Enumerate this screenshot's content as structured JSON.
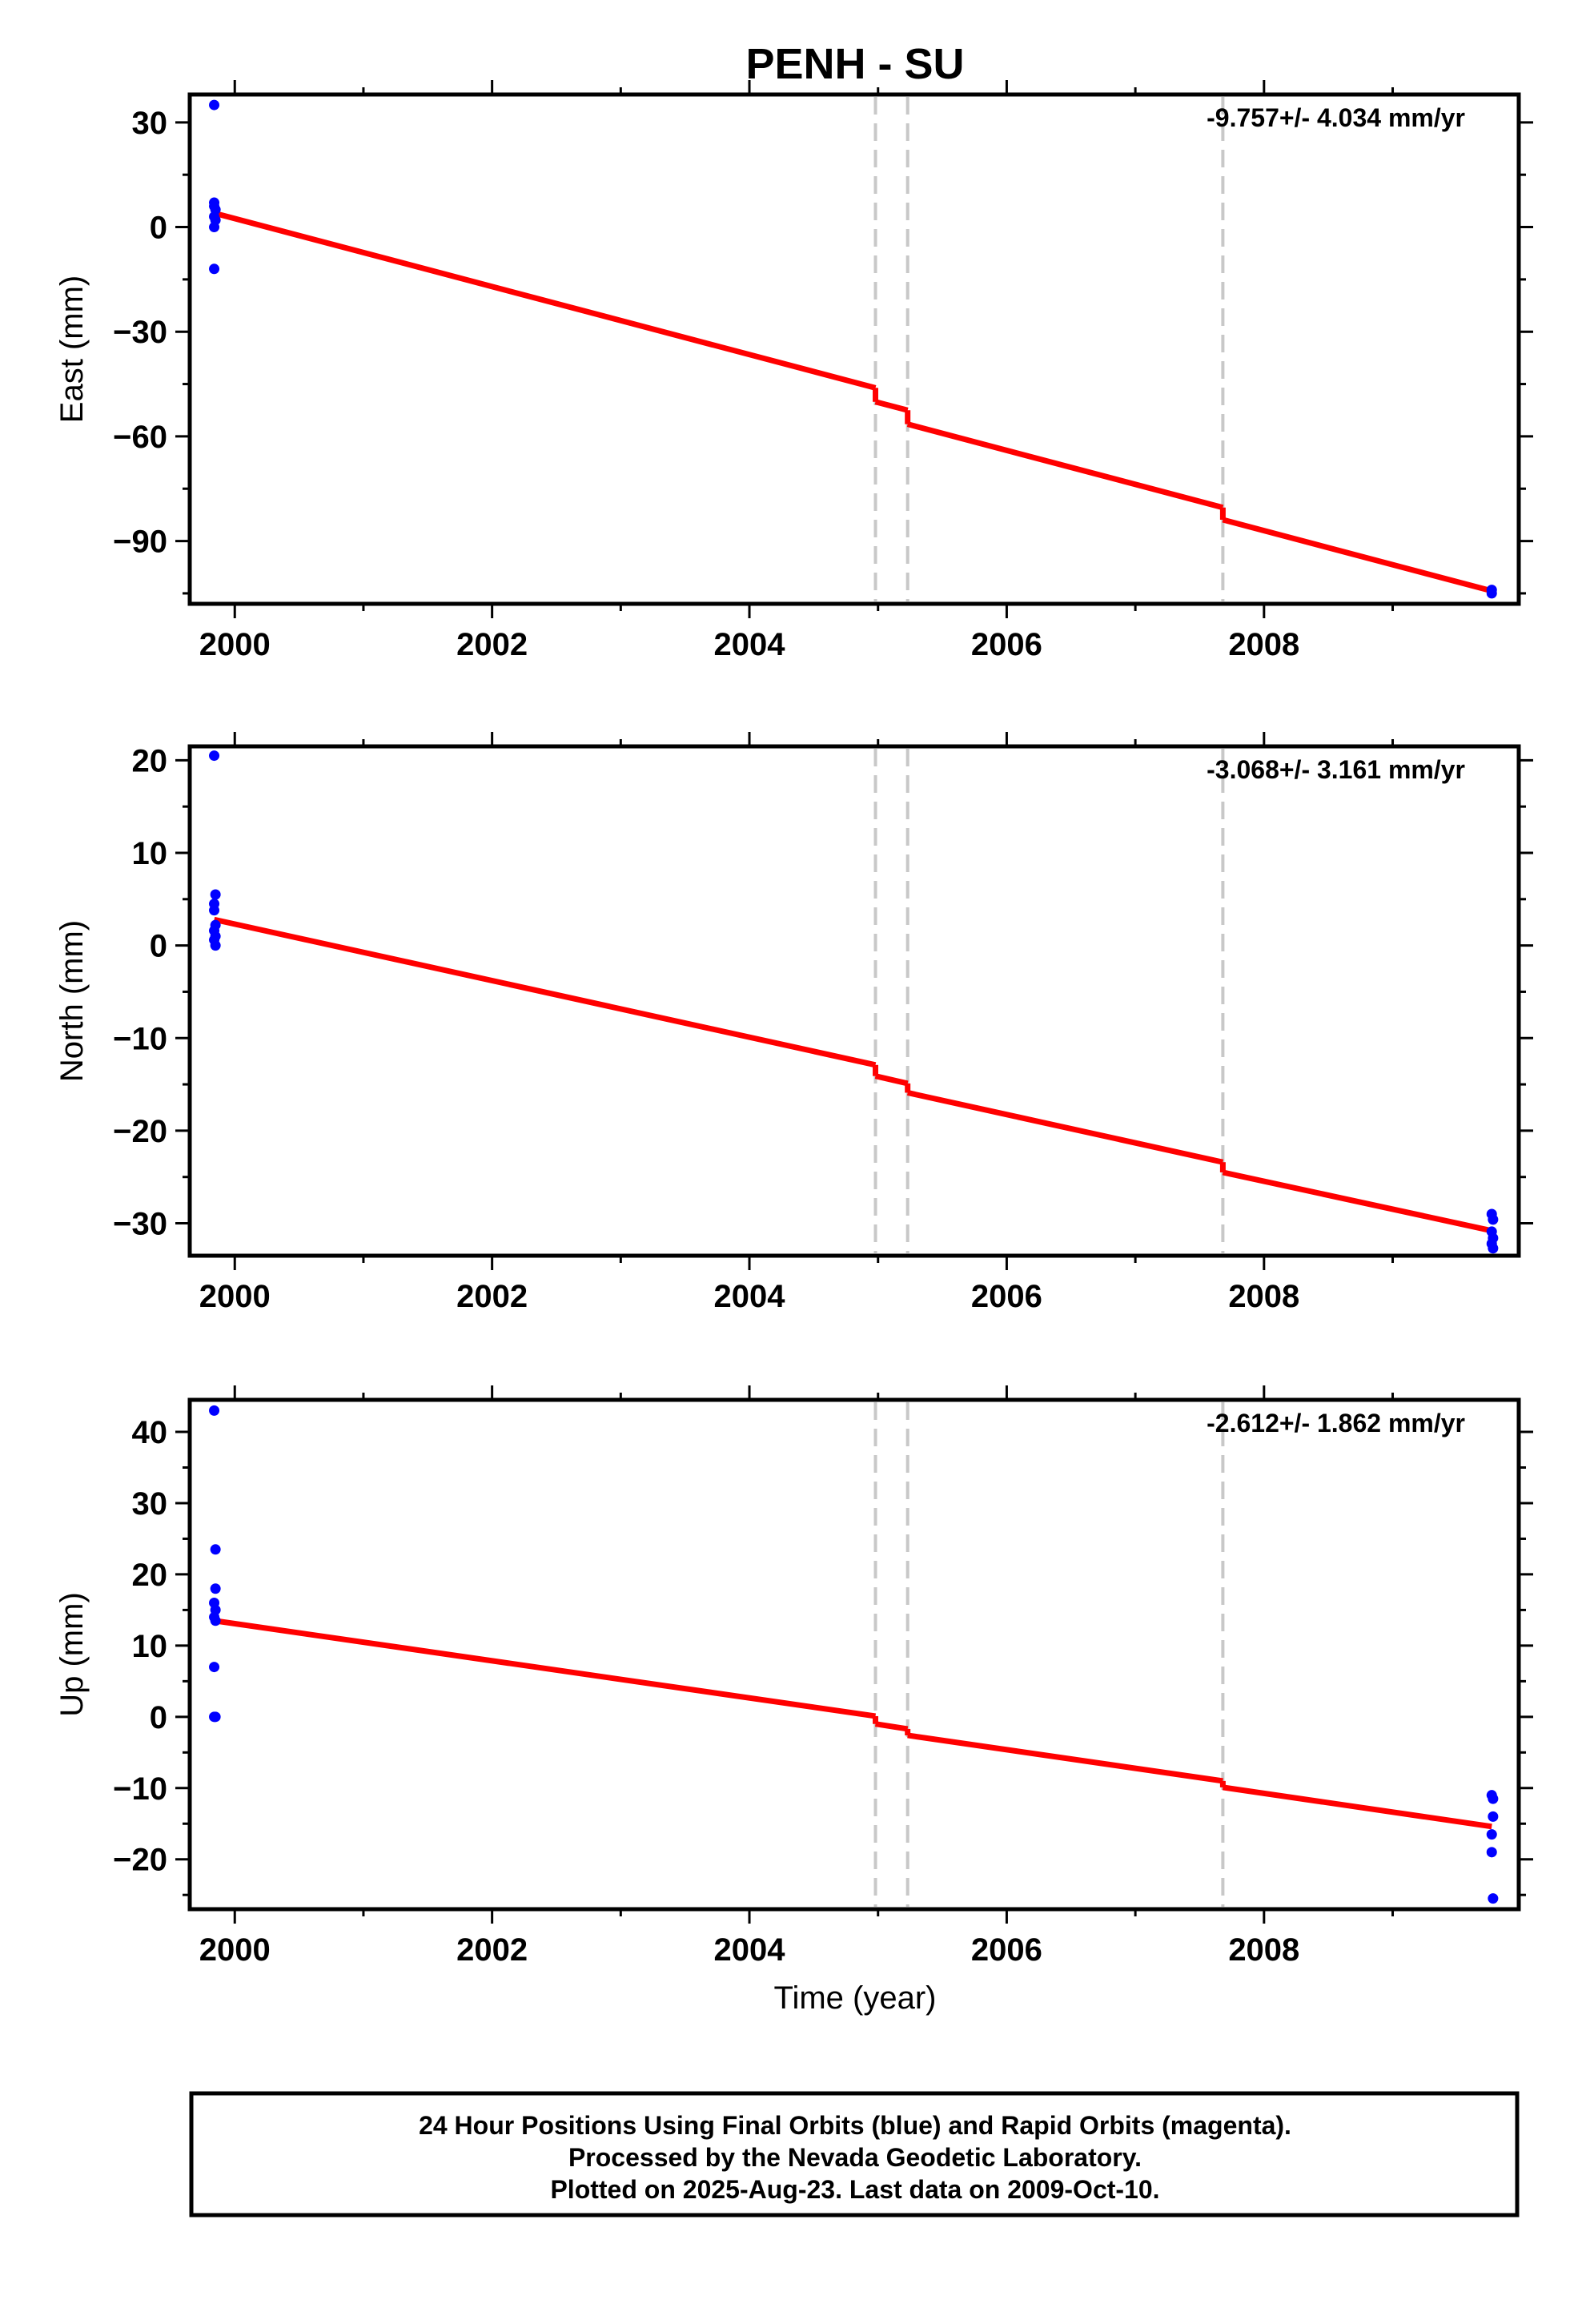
{
  "chart_data": {
    "title": "PENH - SU",
    "type": "scatter",
    "x_label": "Time (year)",
    "x_range": [
      1999.65,
      2009.98
    ],
    "x_ticks": [
      2000,
      2002,
      2004,
      2006,
      2008
    ],
    "x_minor_ticks": [
      2001,
      2003,
      2005,
      2007,
      2009
    ],
    "x_tick_labels": [
      "2000",
      "2002",
      "2004",
      "2006",
      "2008"
    ],
    "event_lines_x": [
      2004.98,
      2005.23,
      2007.68
    ],
    "event_line_color": "#c8c8c8",
    "point_color": "#0000ff",
    "fit_color": "#ff0000",
    "panels": [
      {
        "name": "east",
        "ylabel": "East (mm)",
        "ylim": [
          -108,
          38
        ],
        "y_ticks": [
          30,
          0,
          -30,
          -60,
          -90
        ],
        "y_tick_labels": [
          "30",
          "0",
          "−30",
          "−60",
          "−90"
        ],
        "y_minor_ticks": [
          15,
          -15,
          -45,
          -75,
          -105
        ],
        "rate_label": "-9.757+/- 4.034 mm/yr",
        "points": [
          {
            "x": 1999.84,
            "y": 35
          },
          {
            "x": 1999.84,
            "y": 7
          },
          {
            "x": 1999.84,
            "y": 6
          },
          {
            "x": 1999.85,
            "y": 5
          },
          {
            "x": 1999.84,
            "y": 3
          },
          {
            "x": 1999.85,
            "y": 2
          },
          {
            "x": 1999.84,
            "y": 0
          },
          {
            "x": 1999.84,
            "y": -12
          },
          {
            "x": 2009.77,
            "y": -104
          },
          {
            "x": 2009.77,
            "y": -105
          }
        ],
        "fit": {
          "rate": -9.757,
          "segments": [
            {
              "x0": 1999.84,
              "x1": 2004.98,
              "y0": 4.0,
              "y1": -46.1
            },
            {
              "x0": 2004.98,
              "x1": 2005.23,
              "y0": -50.1,
              "y1": -52.5
            },
            {
              "x0": 2005.23,
              "x1": 2007.68,
              "y0": -56.5,
              "y1": -80.4
            },
            {
              "x0": 2007.68,
              "x1": 2009.77,
              "y0": -83.9,
              "y1": -104.3
            }
          ]
        }
      },
      {
        "name": "north",
        "ylabel": "North (mm)",
        "ylim": [
          -33.5,
          21.5
        ],
        "y_ticks": [
          20,
          10,
          0,
          -10,
          -20,
          -30
        ],
        "y_tick_labels": [
          "20",
          "10",
          "0",
          "−10",
          "−20",
          "−30"
        ],
        "y_minor_ticks": [
          15,
          5,
          -5,
          -15,
          -25
        ],
        "rate_label": "-3.068+/- 3.161 mm/yr",
        "points": [
          {
            "x": 1999.84,
            "y": 20.5
          },
          {
            "x": 1999.85,
            "y": 5.5
          },
          {
            "x": 1999.84,
            "y": 4.5
          },
          {
            "x": 1999.84,
            "y": 3.8
          },
          {
            "x": 1999.85,
            "y": 2.2
          },
          {
            "x": 1999.84,
            "y": 1.6
          },
          {
            "x": 1999.85,
            "y": 1.0
          },
          {
            "x": 1999.84,
            "y": 0.6
          },
          {
            "x": 1999.85,
            "y": 0.0
          },
          {
            "x": 2009.77,
            "y": -29.0
          },
          {
            "x": 2009.78,
            "y": -29.6
          },
          {
            "x": 2009.77,
            "y": -30.9
          },
          {
            "x": 2009.78,
            "y": -31.6
          },
          {
            "x": 2009.77,
            "y": -32.2
          },
          {
            "x": 2009.78,
            "y": -32.7
          }
        ],
        "fit": {
          "rate": -3.068,
          "segments": [
            {
              "x0": 1999.84,
              "x1": 2004.98,
              "y0": 2.8,
              "y1": -12.9
            },
            {
              "x0": 2004.98,
              "x1": 2005.23,
              "y0": -14.1,
              "y1": -14.9
            },
            {
              "x0": 2005.23,
              "x1": 2007.68,
              "y0": -15.9,
              "y1": -23.4
            },
            {
              "x0": 2007.68,
              "x1": 2009.77,
              "y0": -24.5,
              "y1": -30.8
            }
          ]
        }
      },
      {
        "name": "up",
        "ylabel": "Up (mm)",
        "ylim": [
          -27,
          44.5
        ],
        "y_ticks": [
          40,
          30,
          20,
          10,
          0,
          -10,
          -20
        ],
        "y_tick_labels": [
          "40",
          "30",
          "20",
          "10",
          "0",
          "−10",
          "−20"
        ],
        "y_minor_ticks": [
          35,
          25,
          15,
          5,
          -5,
          -15,
          -25
        ],
        "rate_label": "-2.612+/- 1.862 mm/yr",
        "points": [
          {
            "x": 1999.84,
            "y": 43
          },
          {
            "x": 1999.85,
            "y": 23.5
          },
          {
            "x": 1999.85,
            "y": 18
          },
          {
            "x": 1999.84,
            "y": 16
          },
          {
            "x": 1999.85,
            "y": 15
          },
          {
            "x": 1999.84,
            "y": 14
          },
          {
            "x": 1999.85,
            "y": 13.5
          },
          {
            "x": 1999.84,
            "y": 7
          },
          {
            "x": 1999.84,
            "y": 0
          },
          {
            "x": 1999.85,
            "y": 0
          },
          {
            "x": 2009.77,
            "y": -11
          },
          {
            "x": 2009.78,
            "y": -11.5
          },
          {
            "x": 2009.78,
            "y": -14
          },
          {
            "x": 2009.77,
            "y": -16.5
          },
          {
            "x": 2009.77,
            "y": -19
          },
          {
            "x": 2009.78,
            "y": -25.5
          }
        ],
        "fit": {
          "rate": -2.612,
          "segments": [
            {
              "x0": 1999.84,
              "x1": 2004.98,
              "y0": 13.5,
              "y1": 0.1
            },
            {
              "x0": 2004.98,
              "x1": 2005.23,
              "y0": -1.0,
              "y1": -1.7
            },
            {
              "x0": 2005.23,
              "x1": 2007.68,
              "y0": -2.6,
              "y1": -9.0
            },
            {
              "x0": 2007.68,
              "x1": 2009.77,
              "y0": -9.9,
              "y1": -15.4
            }
          ]
        }
      }
    ]
  },
  "footer": {
    "line1": "24 Hour Positions Using Final Orbits (blue) and Rapid Orbits (magenta).",
    "line2": "Processed by the Nevada Geodetic Laboratory.",
    "line3": "Plotted on 2025-Aug-23. Last data on 2009-Oct-10."
  }
}
